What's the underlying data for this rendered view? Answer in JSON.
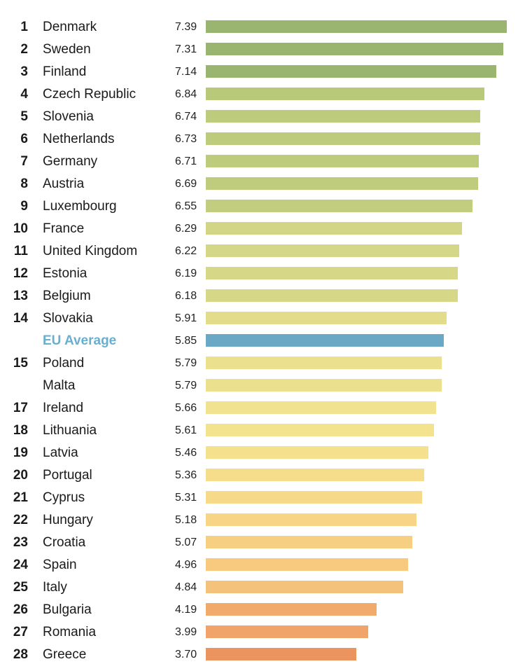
{
  "chart_data": {
    "type": "bar",
    "orientation": "horizontal",
    "xlim": [
      0,
      7.39
    ],
    "grid": false,
    "rows": [
      {
        "rank": "1",
        "country": "Denmark",
        "value": 7.39,
        "label": "7.39",
        "color": "#9ab56f"
      },
      {
        "rank": "2",
        "country": "Sweden",
        "value": 7.31,
        "label": "7.31",
        "color": "#9ab56f"
      },
      {
        "rank": "3",
        "country": "Finland",
        "value": 7.14,
        "label": "7.14",
        "color": "#9ab56f"
      },
      {
        "rank": "4",
        "country": "Czech Republic",
        "value": 6.84,
        "label": "6.84",
        "color": "#b9c97a"
      },
      {
        "rank": "5",
        "country": "Slovenia",
        "value": 6.74,
        "label": "6.74",
        "color": "#bccb7c"
      },
      {
        "rank": "6",
        "country": "Netherlands",
        "value": 6.73,
        "label": "6.73",
        "color": "#bccb7c"
      },
      {
        "rank": "7",
        "country": "Germany",
        "value": 6.71,
        "label": "6.71",
        "color": "#bdcb7d"
      },
      {
        "rank": "8",
        "country": "Austria",
        "value": 6.69,
        "label": "6.69",
        "color": "#bfcc7e"
      },
      {
        "rank": "9",
        "country": "Luxembourg",
        "value": 6.55,
        "label": "6.55",
        "color": "#c2cd80"
      },
      {
        "rank": "10",
        "country": "France",
        "value": 6.29,
        "label": "6.29",
        "color": "#d1d585"
      },
      {
        "rank": "11",
        "country": "United Kingdom",
        "value": 6.22,
        "label": "6.22",
        "color": "#d4d787"
      },
      {
        "rank": "12",
        "country": "Estonia",
        "value": 6.19,
        "label": "6.19",
        "color": "#d6d888"
      },
      {
        "rank": "13",
        "country": "Belgium",
        "value": 6.18,
        "label": "6.18",
        "color": "#d6d888"
      },
      {
        "rank": "14",
        "country": "Slovakia",
        "value": 5.91,
        "label": "5.91",
        "color": "#e2dc8b"
      },
      {
        "rank": "",
        "country": "EU Average",
        "value": 5.85,
        "label": "5.85",
        "color": "#6aa8c6",
        "highlight": true
      },
      {
        "rank": "15",
        "country": "Poland",
        "value": 5.79,
        "label": "5.79",
        "color": "#ebe08d"
      },
      {
        "rank": "",
        "country": "Malta",
        "value": 5.79,
        "label": "5.79",
        "color": "#ebe08d"
      },
      {
        "rank": "17",
        "country": "Ireland",
        "value": 5.66,
        "label": "5.66",
        "color": "#f1e28f"
      },
      {
        "rank": "18",
        "country": "Lithuania",
        "value": 5.61,
        "label": "5.61",
        "color": "#f3e38f"
      },
      {
        "rank": "19",
        "country": "Latvia",
        "value": 5.46,
        "label": "5.46",
        "color": "#f5e08e"
      },
      {
        "rank": "20",
        "country": "Portugal",
        "value": 5.36,
        "label": "5.36",
        "color": "#f6dd8c"
      },
      {
        "rank": "21",
        "country": "Cyprus",
        "value": 5.31,
        "label": "5.31",
        "color": "#f6da8a"
      },
      {
        "rank": "22",
        "country": "Hungary",
        "value": 5.18,
        "label": "5.18",
        "color": "#f7d486"
      },
      {
        "rank": "23",
        "country": "Croatia",
        "value": 5.07,
        "label": "5.07",
        "color": "#f7cf82"
      },
      {
        "rank": "24",
        "country": "Spain",
        "value": 4.96,
        "label": "4.96",
        "color": "#f7ca7f"
      },
      {
        "rank": "25",
        "country": "Italy",
        "value": 4.84,
        "label": "4.84",
        "color": "#f5c27b"
      },
      {
        "rank": "26",
        "country": "Bulgaria",
        "value": 4.19,
        "label": "4.19",
        "color": "#f2a96c"
      },
      {
        "rank": "27",
        "country": "Romania",
        "value": 3.99,
        "label": "3.99",
        "color": "#f0a469"
      },
      {
        "rank": "28",
        "country": "Greece",
        "value": 3.7,
        "label": "3.70",
        "color": "#ec9460"
      }
    ]
  }
}
